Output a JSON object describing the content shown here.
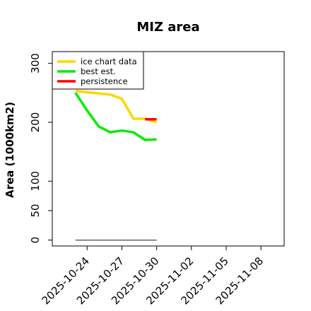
{
  "chart_data": {
    "type": "line",
    "title": "MIZ area",
    "xlabel": "",
    "ylabel": "Area (1000km2)",
    "x_ticks": [
      "2025-10-24",
      "2025-10-27",
      "2025-10-30",
      "2025-11-02",
      "2025-11-05",
      "2025-11-08"
    ],
    "xlim": [
      "2025-10-21",
      "2025-11-10"
    ],
    "y_ticks": [
      0,
      50,
      100,
      200,
      300
    ],
    "ylim": [
      -10,
      320
    ],
    "grid": false,
    "legend_position": "top-left",
    "series": [
      {
        "name": "ice chart data",
        "color": "#ffd700",
        "x": [
          "2025-10-23",
          "2025-10-26",
          "2025-10-27",
          "2025-10-28",
          "2025-10-29",
          "2025-10-30"
        ],
        "y": [
          253,
          247,
          240,
          206,
          206,
          200
        ]
      },
      {
        "name": "best est.",
        "color": "#00ee00",
        "x": [
          "2025-10-23",
          "2025-10-24",
          "2025-10-25",
          "2025-10-26",
          "2025-10-27",
          "2025-10-28",
          "2025-10-29",
          "2025-10-30"
        ],
        "y": [
          250,
          220,
          193,
          183,
          186,
          183,
          170,
          171
        ]
      },
      {
        "name": "persistence",
        "color": "#ff0000",
        "x": [
          "2025-10-29",
          "2025-10-30"
        ],
        "y": [
          205,
          205
        ]
      }
    ],
    "baseline": {
      "color": "#555555",
      "x": [
        "2025-10-23",
        "2025-10-30"
      ],
      "y": [
        0,
        0
      ]
    }
  }
}
